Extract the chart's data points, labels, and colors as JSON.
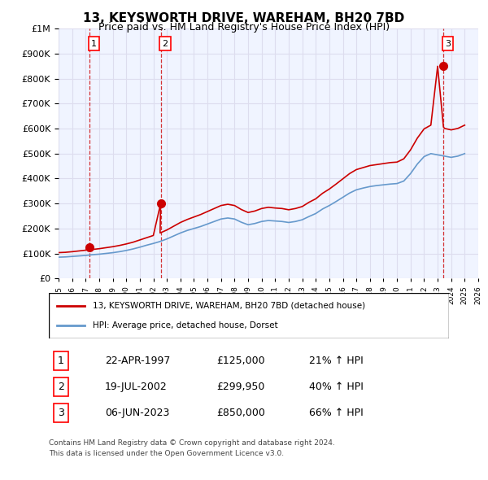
{
  "title": "13, KEYSWORTH DRIVE, WAREHAM, BH20 7BD",
  "subtitle": "Price paid vs. HM Land Registry's House Price Index (HPI)",
  "legend_line1": "13, KEYSWORTH DRIVE, WAREHAM, BH20 7BD (detached house)",
  "legend_line2": "HPI: Average price, detached house, Dorset",
  "footer1": "Contains HM Land Registry data © Crown copyright and database right 2024.",
  "footer2": "This data is licensed under the Open Government Licence v3.0.",
  "sale_dates": [
    1997.31,
    2002.54,
    2023.43
  ],
  "sale_prices": [
    125000,
    299950,
    850000
  ],
  "sale_labels": [
    "1",
    "2",
    "3"
  ],
  "sale_table": [
    [
      "1",
      "22-APR-1997",
      "£125,000",
      "21% ↑ HPI"
    ],
    [
      "2",
      "19-JUL-2002",
      "£299,950",
      "40% ↑ HPI"
    ],
    [
      "3",
      "06-JUN-2023",
      "£850,000",
      "66% ↑ HPI"
    ]
  ],
  "hpi_x": [
    1995,
    1995.5,
    1996,
    1996.5,
    1997,
    1997.5,
    1998,
    1998.5,
    1999,
    1999.5,
    2000,
    2000.5,
    2001,
    2001.5,
    2002,
    2002.5,
    2003,
    2003.5,
    2004,
    2004.5,
    2005,
    2005.5,
    2006,
    2006.5,
    2007,
    2007.5,
    2008,
    2008.5,
    2009,
    2009.5,
    2010,
    2010.5,
    2011,
    2011.5,
    2012,
    2012.5,
    2013,
    2013.5,
    2014,
    2014.5,
    2015,
    2015.5,
    2016,
    2016.5,
    2017,
    2017.5,
    2018,
    2018.5,
    2019,
    2019.5,
    2020,
    2020.5,
    2021,
    2021.5,
    2022,
    2022.5,
    2023,
    2023.5,
    2024,
    2024.5,
    2025
  ],
  "hpi_y": [
    85000,
    86000,
    88000,
    90000,
    92000,
    95000,
    97000,
    100000,
    103000,
    107000,
    112000,
    118000,
    125000,
    133000,
    140000,
    148000,
    158000,
    170000,
    182000,
    192000,
    200000,
    208000,
    218000,
    228000,
    238000,
    242000,
    238000,
    225000,
    215000,
    220000,
    228000,
    232000,
    230000,
    228000,
    224000,
    228000,
    235000,
    248000,
    260000,
    278000,
    292000,
    308000,
    325000,
    342000,
    355000,
    362000,
    368000,
    372000,
    375000,
    378000,
    380000,
    390000,
    420000,
    458000,
    488000,
    500000,
    495000,
    490000,
    485000,
    490000,
    500000
  ],
  "red_line_x": [
    1995,
    1995.5,
    1996,
    1996.5,
    1997,
    1997.31,
    1997.5,
    1998,
    1998.5,
    1999,
    1999.5,
    2000,
    2000.5,
    2001,
    2001.5,
    2002,
    2002.54,
    2002.5,
    2003,
    2003.5,
    2004,
    2004.5,
    2005,
    2005.5,
    2006,
    2006.5,
    2007,
    2007.5,
    2008,
    2008.5,
    2009,
    2009.5,
    2010,
    2010.5,
    2011,
    2011.5,
    2012,
    2012.5,
    2013,
    2013.5,
    2014,
    2014.5,
    2015,
    2015.5,
    2016,
    2016.5,
    2017,
    2017.5,
    2018,
    2018.5,
    2019,
    2019.5,
    2020,
    2020.5,
    2021,
    2021.5,
    2022,
    2022.5,
    2023,
    2023.43,
    2023.5,
    2024,
    2024.5,
    2025
  ],
  "red_line_y": [
    103306,
    104500,
    107000,
    110000,
    113000,
    125000,
    116000,
    119000,
    123000,
    127000,
    132000,
    138000,
    145000,
    154000,
    163000,
    172000,
    299950,
    182000,
    194000,
    209000,
    224000,
    236000,
    246000,
    256000,
    268000,
    280000,
    292000,
    297000,
    292000,
    276000,
    264000,
    270000,
    280000,
    285000,
    282000,
    280000,
    275000,
    280000,
    288000,
    305000,
    319000,
    341000,
    358000,
    378000,
    399000,
    420000,
    436000,
    444000,
    452000,
    456000,
    460000,
    464000,
    466000,
    479000,
    515000,
    562000,
    599000,
    614000,
    850000,
    607000,
    601000,
    595000,
    601000,
    614000
  ],
  "ylim": [
    0,
    1000000
  ],
  "xlim": [
    1995,
    2026
  ],
  "red_color": "#cc0000",
  "blue_color": "#6699cc",
  "grid_color": "#ddddee",
  "background_color": "#f0f4ff",
  "plot_bg_color": "#f0f4ff"
}
